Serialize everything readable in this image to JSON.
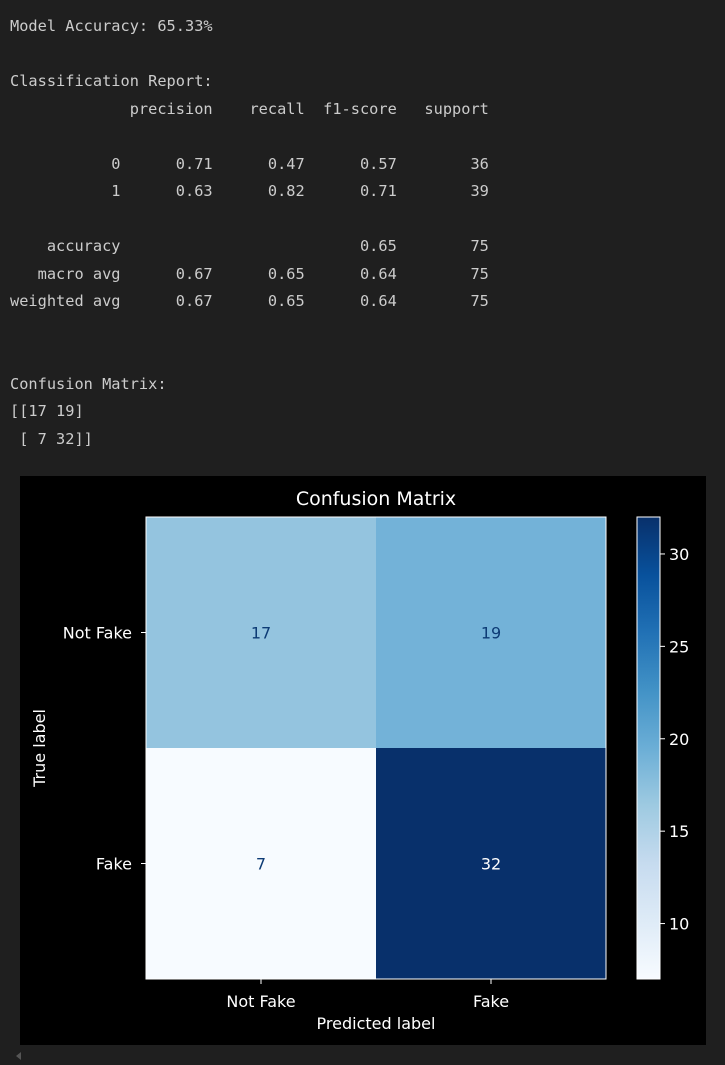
{
  "output": {
    "accuracy_line": "Model Accuracy: 65.33%",
    "report_title": "Classification Report:",
    "report_header": [
      "",
      "precision",
      "recall",
      "f1-score",
      "support"
    ],
    "report_rows": [
      [
        "0",
        "0.71",
        "0.47",
        "0.57",
        "36"
      ],
      [
        "1",
        "0.63",
        "0.82",
        "0.71",
        "39"
      ],
      [],
      [
        "accuracy",
        "",
        "",
        "0.65",
        "75"
      ],
      [
        "macro avg",
        "0.67",
        "0.65",
        "0.64",
        "75"
      ],
      [
        "weighted avg",
        "0.67",
        "0.65",
        "0.64",
        "75"
      ]
    ],
    "cm_title": "Confusion Matrix:",
    "cm_lines": [
      "[[17 19]",
      " [ 7 32]]"
    ]
  },
  "chart_data": {
    "type": "heatmap",
    "title": "Confusion Matrix",
    "xlabel": "Predicted label",
    "ylabel": "True label",
    "x_categories": [
      "Not Fake",
      "Fake"
    ],
    "y_categories": [
      "Not Fake",
      "Fake"
    ],
    "values": [
      [
        17,
        19
      ],
      [
        7,
        32
      ]
    ],
    "colormap": "Blues",
    "colorbar": {
      "range": [
        7,
        32
      ],
      "ticks": [
        10,
        15,
        20,
        25,
        30
      ]
    },
    "background": "#000000",
    "text_color": "#ffffff",
    "cell_text_color": "#0d3b75",
    "cell_text_color_dark": "#ffffff"
  }
}
